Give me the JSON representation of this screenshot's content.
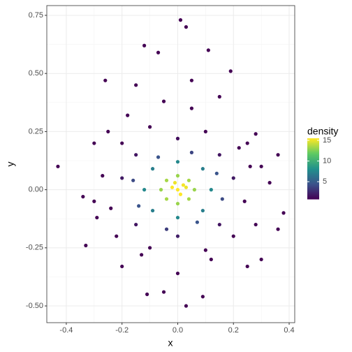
{
  "chart_data": {
    "type": "scatter",
    "x_label": "x",
    "y_label": "y",
    "xlim": [
      -0.47,
      0.42
    ],
    "ylim": [
      -0.572,
      0.792
    ],
    "xticks": [
      -0.4,
      -0.2,
      {
        "value": 0,
        "label": "0.0"
      },
      0.2,
      0.4
    ],
    "yticks": [
      {
        "value": -0.5,
        "label": "-0.50"
      },
      {
        "value": -0.25,
        "label": "-0.25"
      },
      {
        "value": 0,
        "label": "0.00"
      },
      {
        "value": 0.25,
        "label": "0.25"
      },
      {
        "value": 0.5,
        "label": "0.50"
      },
      0.75
    ],
    "grid": true,
    "color_scale": {
      "title": "density",
      "lim": [
        0.8,
        15.5
      ],
      "ticks": [
        5,
        10,
        15
      ],
      "colors": [
        "#440154",
        "#3b528b",
        "#21908c",
        "#5dc963",
        "#fde725"
      ]
    },
    "x": [
      -0.43,
      0.01,
      0.03,
      -0.12,
      0.38,
      0.36,
      0.36,
      -0.34,
      0.09,
      -0.11,
      0.03,
      -0.05,
      -0.07,
      0.11,
      -0.26,
      0.19,
      -0.33,
      0.3,
      -0.3,
      0.28,
      0.25,
      -0.2,
      0.15,
      -0.15,
      0.33,
      -0.29,
      0.0,
      0.05,
      -0.2,
      0.2,
      0.0,
      0.0,
      0.15,
      -0.15,
      0.15,
      -0.15,
      0.24,
      -0.24,
      0.1,
      -0.1,
      0.1,
      -0.1,
      0.26,
      -0.27,
      0.2,
      -0.2,
      0.22,
      -0.22,
      0.12,
      -0.12,
      0,
      0,
      0.09,
      -0.09,
      0.09,
      -0.09,
      0.14,
      -0.14,
      0.07,
      -0.07,
      0.16,
      -0.16,
      0.05,
      -0.04,
      0.06,
      -0.06,
      0,
      0,
      0.04,
      -0.04,
      0.04,
      -0.04,
      0,
      0.02,
      -0.02,
      0.01,
      0.03,
      -0.01,
      -0.25,
      0.25,
      0.12,
      -0.13,
      0.28,
      -0.3,
      0.3,
      -0.18,
      0.05,
      -0.05
    ],
    "y": [
      0.1,
      0.73,
      0.7,
      0.62,
      -0.1,
      -0.17,
      0.15,
      -0.03,
      -0.46,
      -0.45,
      -0.5,
      -0.44,
      0.59,
      0.6,
      0.47,
      0.51,
      -0.24,
      -0.3,
      0.2,
      0.24,
      -0.33,
      -0.33,
      0.4,
      0.45,
      0.03,
      -0.12,
      -0.36,
      0.47,
      0.05,
      0.05,
      0.22,
      -0.2,
      0.15,
      0.15,
      -0.15,
      -0.15,
      -0.05,
      -0.08,
      0.25,
      0.27,
      -0.26,
      -0.25,
      0.1,
      0.06,
      -0.2,
      0.2,
      0.18,
      -0.2,
      0,
      0,
      0.12,
      -0.12,
      0.09,
      0.09,
      -0.09,
      -0.09,
      0.07,
      -0.07,
      -0.14,
      0.14,
      -0.04,
      0.04,
      0.16,
      -0.17,
      0,
      0,
      0.06,
      -0.06,
      0.04,
      0.04,
      -0.04,
      -0.04,
      0,
      0.02,
      0.01,
      -0.02,
      0.01,
      0.03,
      0.25,
      0.2,
      -0.3,
      -0.28,
      -0.15,
      -0.05,
      0.1,
      0.32,
      0.35,
      0.38
    ],
    "density": [
      0,
      0,
      0,
      0,
      0,
      0,
      0,
      0.05,
      0,
      0,
      0,
      0,
      0,
      0,
      0,
      0,
      0,
      0,
      0.02,
      0.02,
      0,
      0.01,
      0,
      0,
      0.07,
      0.12,
      0.02,
      0,
      1.9,
      1.9,
      1.4,
      2.1,
      1.7,
      1.7,
      1.7,
      1.7,
      0.8,
      0.6,
      0.4,
      0.25,
      0.33,
      0.42,
      0.33,
      0.35,
      0.29,
      0.29,
      0.28,
      0.19,
      7.7,
      7.7,
      7.7,
      7.7,
      7.1,
      7.1,
      7.1,
      7.1,
      4.6,
      4.6,
      4.6,
      4.6,
      4.1,
      4.1,
      3.9,
      3.5,
      13.2,
      13.2,
      13.2,
      13.2,
      13.5,
      13.5,
      13.5,
      13.5,
      15.9,
      15.3,
      15.5,
      15.5,
      15.1,
      15.1,
      0.03,
      0.1,
      0.1,
      0.14,
      0.1,
      0.15,
      0.11,
      0.02,
      0.03,
      0.01
    ]
  }
}
